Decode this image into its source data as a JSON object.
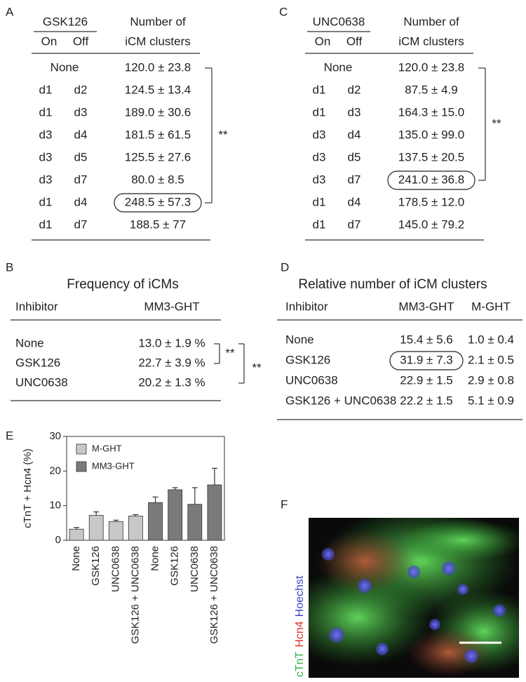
{
  "panels": {
    "A": {
      "label": "A",
      "group": "GSK126",
      "on": "On",
      "off": "Off",
      "header": [
        "Number of",
        "iCM clusters"
      ],
      "rows": [
        {
          "on": "None",
          "value": "120.0 ± 23.8"
        },
        {
          "on": "d1",
          "off": "d2",
          "value": "124.5 ± 13.4"
        },
        {
          "on": "d1",
          "off": "d3",
          "value": "189.0 ± 30.6"
        },
        {
          "on": "d3",
          "off": "d4",
          "value": "181.5 ± 61.5"
        },
        {
          "on": "d3",
          "off": "d5",
          "value": "125.5 ± 27.6"
        },
        {
          "on": "d3",
          "off": "d7",
          "value": "80.0 ± 8.5"
        },
        {
          "on": "d1",
          "off": "d4",
          "value": "248.5 ± 57.3",
          "highlight": true
        },
        {
          "on": "d1",
          "off": "d7",
          "value": "188.5 ± 77"
        }
      ],
      "significance": "**"
    },
    "C": {
      "label": "C",
      "group": "UNC0638",
      "on": "On",
      "off": "Off",
      "header": [
        "Number of",
        "iCM clusters"
      ],
      "rows": [
        {
          "on": "None",
          "value": "120.0 ± 23.8"
        },
        {
          "on": "d1",
          "off": "d2",
          "value": "87.5 ± 4.9"
        },
        {
          "on": "d1",
          "off": "d3",
          "value": "164.3 ± 15.0"
        },
        {
          "on": "d3",
          "off": "d4",
          "value": "135.0 ± 99.0"
        },
        {
          "on": "d3",
          "off": "d5",
          "value": "137.5 ± 20.5"
        },
        {
          "on": "d3",
          "off": "d7",
          "value": "241.0 ± 36.8",
          "highlight": true
        },
        {
          "on": "d1",
          "off": "d4",
          "value": "178.5 ± 12.0"
        },
        {
          "on": "d1",
          "off": "d7",
          "value": "145.0 ± 79.2"
        }
      ],
      "significance": "**"
    },
    "B": {
      "label": "B",
      "title": "Frequency of iCMs",
      "columns": [
        "Inhibitor",
        "MM3-GHT"
      ],
      "rows": [
        [
          "None",
          "13.0 ± 1.9 %"
        ],
        [
          "GSK126",
          "22.7 ± 3.9 %"
        ],
        [
          "UNC0638",
          "20.2 ± 1.3 %"
        ]
      ],
      "significance": [
        "**",
        "**"
      ]
    },
    "D": {
      "label": "D",
      "title": "Relative number of iCM clusters",
      "columns": [
        "Inhibitor",
        "MM3-GHT",
        "M-GHT"
      ],
      "rows": [
        [
          "None",
          "15.4 ± 5.6",
          "1.0 ± 0.4"
        ],
        [
          "GSK126",
          "31.9 ± 7.3",
          "2.1 ± 0.5"
        ],
        [
          "UNC0638",
          "22.9 ± 1.5",
          "2.9 ± 0.8"
        ],
        [
          "GSK126 + UNC0638",
          "22.2 ± 1.5",
          "5.1 ± 0.9"
        ]
      ],
      "highlight": [
        1,
        1
      ]
    },
    "E": {
      "label": "E"
    },
    "F": {
      "label": "F",
      "stains": [
        {
          "name": "cTnT",
          "color": "#2db34a"
        },
        {
          "name": "Hcn4",
          "color": "#e0302a"
        },
        {
          "name": "Hoechst",
          "color": "#3a45c8"
        }
      ]
    }
  },
  "chart_data": {
    "type": "bar",
    "ylabel": "cTnT + Hcn4 (%)",
    "categories": [
      "None",
      "GSK126",
      "UNC0638",
      "GSK126 + UNC0638",
      "None",
      "GSK126",
      "UNC0638",
      "GSK126 + UNC0638"
    ],
    "series": [
      {
        "name": "M-GHT",
        "color": "#c8c8c8",
        "values": [
          3.2,
          7.2,
          5.4,
          7.0,
          null,
          null,
          null,
          null
        ],
        "errors": [
          0.5,
          1.0,
          0.4,
          0.4,
          null,
          null,
          null,
          null
        ]
      },
      {
        "name": "MM3-GHT",
        "color": "#7a7a7a",
        "values": [
          null,
          null,
          null,
          null,
          10.9,
          14.6,
          10.4,
          16.0
        ],
        "errors": [
          null,
          null,
          null,
          null,
          1.6,
          0.6,
          4.8,
          4.8
        ]
      }
    ],
    "ylim": [
      0,
      30
    ],
    "yticks": [
      0,
      10,
      20,
      30
    ]
  }
}
